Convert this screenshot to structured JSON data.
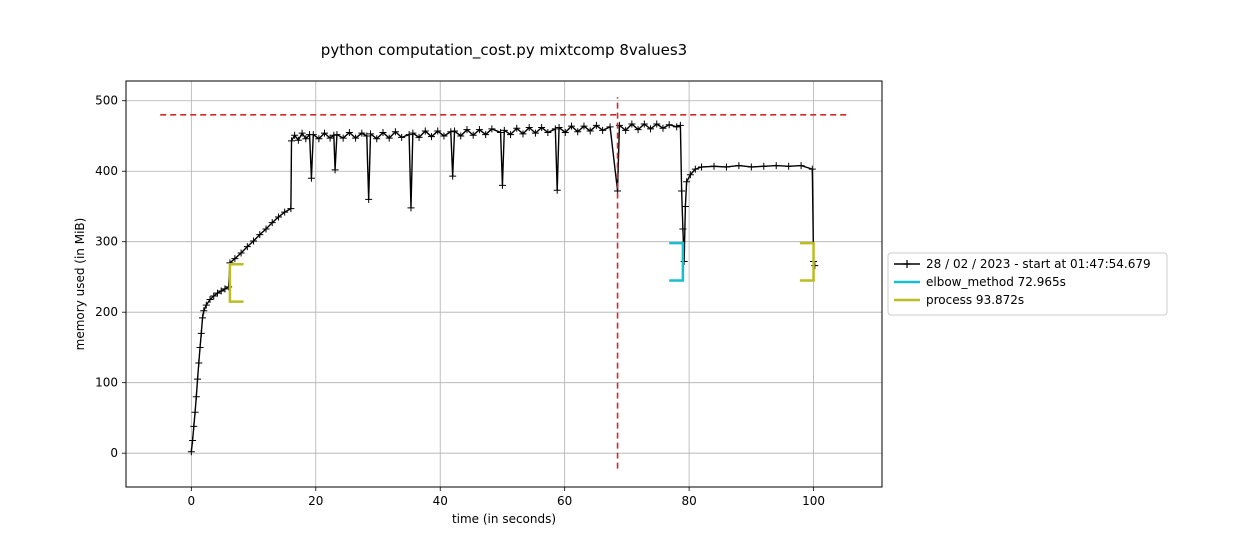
{
  "chart_data": {
    "type": "line",
    "title": "python computation_cost.py mixtcomp 8values3",
    "xlabel": "time (in seconds)",
    "ylabel": "memory used (in MiB)",
    "xlim": [
      -10.5,
      111
    ],
    "ylim": [
      -48,
      528
    ],
    "xticks": [
      0,
      20,
      40,
      60,
      80,
      100
    ],
    "yticks": [
      0,
      100,
      200,
      300,
      400,
      500
    ],
    "grid": true,
    "legend_position": "right",
    "colors": {
      "memory": "#000000",
      "max_line": "#d62728",
      "elbow": "#17becf",
      "process": "#bcbd22",
      "grid": "#b0b0b0"
    },
    "series": [
      {
        "name": "28 / 02 / 2023 - start at 01:47:54.679",
        "marker": "+",
        "points": [
          [
            0,
            2
          ],
          [
            0.2,
            18
          ],
          [
            0.4,
            38
          ],
          [
            0.6,
            58
          ],
          [
            0.8,
            80
          ],
          [
            1.0,
            105
          ],
          [
            1.2,
            128
          ],
          [
            1.4,
            150
          ],
          [
            1.6,
            170
          ],
          [
            1.8,
            192
          ],
          [
            2.0,
            202
          ],
          [
            2.4,
            210
          ],
          [
            3.0,
            218
          ],
          [
            3.6,
            223
          ],
          [
            4.2,
            227
          ],
          [
            4.8,
            230
          ],
          [
            5.4,
            233
          ],
          [
            6.0,
            236
          ],
          [
            6.2,
            270
          ],
          [
            7,
            276
          ],
          [
            8,
            284
          ],
          [
            9,
            293
          ],
          [
            10,
            301
          ],
          [
            11,
            310
          ],
          [
            12,
            318
          ],
          [
            13,
            327
          ],
          [
            14,
            335
          ],
          [
            15,
            342
          ],
          [
            16,
            347
          ],
          [
            16.1,
            443
          ],
          [
            16.6,
            451
          ],
          [
            17.2,
            444
          ],
          [
            17.8,
            454
          ],
          [
            18.4,
            446
          ],
          [
            19.0,
            452
          ],
          [
            19.3,
            390
          ],
          [
            19.6,
            452
          ],
          [
            20.5,
            446
          ],
          [
            21.4,
            454
          ],
          [
            22.3,
            447
          ],
          [
            22.9,
            451
          ],
          [
            23.1,
            402
          ],
          [
            23.4,
            452
          ],
          [
            24.4,
            447
          ],
          [
            25.4,
            455
          ],
          [
            26.4,
            447
          ],
          [
            27.4,
            454
          ],
          [
            28.2,
            450
          ],
          [
            28.5,
            360
          ],
          [
            28.8,
            453
          ],
          [
            29.8,
            446
          ],
          [
            30.8,
            455
          ],
          [
            31.8,
            447
          ],
          [
            32.8,
            456
          ],
          [
            33.8,
            448
          ],
          [
            35.0,
            452
          ],
          [
            35.3,
            348
          ],
          [
            35.6,
            454
          ],
          [
            36.6,
            448
          ],
          [
            37.6,
            457
          ],
          [
            38.6,
            449
          ],
          [
            39.6,
            457
          ],
          [
            40.6,
            450
          ],
          [
            41.7,
            456
          ],
          [
            42.0,
            393
          ],
          [
            42.3,
            457
          ],
          [
            43.3,
            450
          ],
          [
            44.3,
            459
          ],
          [
            45.3,
            451
          ],
          [
            46.3,
            459
          ],
          [
            47.3,
            452
          ],
          [
            48.3,
            460
          ],
          [
            49.7,
            455
          ],
          [
            50.0,
            380
          ],
          [
            50.3,
            458
          ],
          [
            51.3,
            452
          ],
          [
            52.3,
            461
          ],
          [
            53.3,
            453
          ],
          [
            54.3,
            462
          ],
          [
            55.3,
            454
          ],
          [
            56.3,
            462
          ],
          [
            57.3,
            455
          ],
          [
            58.5,
            460
          ],
          [
            58.8,
            373
          ],
          [
            59.1,
            462
          ],
          [
            60.1,
            455
          ],
          [
            61.1,
            464
          ],
          [
            62.1,
            456
          ],
          [
            63.1,
            464
          ],
          [
            64.1,
            457
          ],
          [
            65.1,
            465
          ],
          [
            66.1,
            458
          ],
          [
            67.3,
            463
          ],
          [
            68.5,
            372
          ],
          [
            68.8,
            465
          ],
          [
            69.8,
            458
          ],
          [
            70.8,
            467
          ],
          [
            71.8,
            459
          ],
          [
            72.8,
            467
          ],
          [
            73.8,
            460
          ],
          [
            74.8,
            467
          ],
          [
            75.8,
            461
          ],
          [
            76.8,
            466
          ],
          [
            78.0,
            463
          ],
          [
            78.6,
            465
          ],
          [
            78.8,
            372
          ],
          [
            79.0,
            318
          ],
          [
            79.2,
            272
          ],
          [
            79.4,
            350
          ],
          [
            79.6,
            385
          ],
          [
            80.2,
            395
          ],
          [
            81,
            403
          ],
          [
            82,
            406
          ],
          [
            84,
            407
          ],
          [
            86,
            406
          ],
          [
            88,
            408
          ],
          [
            90,
            406
          ],
          [
            92,
            407
          ],
          [
            94,
            408
          ],
          [
            96,
            407
          ],
          [
            98,
            408
          ],
          [
            99.8,
            403
          ],
          [
            100.0,
            272
          ],
          [
            100.2,
            266
          ]
        ]
      }
    ],
    "reference_lines": {
      "horizontal_max": {
        "y": 480,
        "x_from": -5,
        "x_to": 105.5
      },
      "vertical_elbow": {
        "x": 68.5,
        "y_from": -22,
        "y_to": 505
      }
    },
    "brackets": [
      {
        "legend": "elbow_method 72.965s",
        "series": "elbow",
        "x": 79.0,
        "side": "end",
        "y_low": 245,
        "y_high": 298,
        "tick_width": 2.2
      },
      {
        "legend": "process 93.872s",
        "series": "process",
        "x": 6.2,
        "side": "start",
        "y_low": 215,
        "y_high": 268,
        "tick_width": 2.2
      },
      {
        "legend": "process 93.872s",
        "series": "process",
        "x": 100.0,
        "side": "end",
        "y_low": 245,
        "y_high": 298,
        "tick_width": 2.2
      }
    ],
    "legend": [
      {
        "label": "28 / 02 / 2023 - start at 01:47:54.679",
        "series": "memory",
        "marker": "+"
      },
      {
        "label": "elbow_method 72.965s",
        "series": "elbow"
      },
      {
        "label": "process 93.872s",
        "series": "process"
      }
    ]
  }
}
